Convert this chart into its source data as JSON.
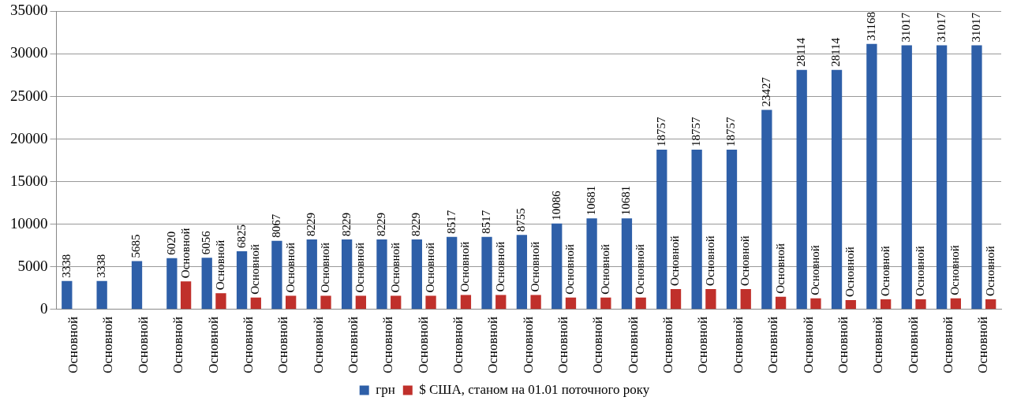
{
  "chart_data": {
    "type": "bar",
    "categories": [
      "Основной",
      "Основной",
      "Основной",
      "Основной",
      "Основной",
      "Основной",
      "Основной",
      "Основной",
      "Основной",
      "Основной",
      "Основной",
      "Основной",
      "Основной",
      "Основной",
      "Основной",
      "Основной",
      "Основной",
      "Основной",
      "Основной",
      "Основной",
      "Основной",
      "Основной",
      "Основной",
      "Основной",
      "Основной",
      "Основной",
      "Основной"
    ],
    "series": [
      {
        "name": "грн",
        "color": "#2e5fa8",
        "values": [
          3338,
          3338,
          5685,
          6020,
          6056,
          6825,
          8067,
          8229,
          8229,
          8229,
          8229,
          8517,
          8517,
          8755,
          10086,
          10681,
          10681,
          18757,
          18757,
          18757,
          23427,
          28114,
          28114,
          31168,
          31017,
          31017,
          31017
        ],
        "value_labels": [
          "3338",
          "3338",
          "5685",
          "6020",
          "6056",
          "6825",
          "8067",
          "8229",
          "8229",
          "8229",
          "8229",
          "8517",
          "8517",
          "8755",
          "10086",
          "10681",
          "10681",
          "18757",
          "18757",
          "18757",
          "23427",
          "28114",
          "28114",
          "31168",
          "31017",
          "31017",
          "31017"
        ]
      },
      {
        "name": "$ США, станом на 01.01 поточного року",
        "color": "#c0302b",
        "values": [
          null,
          null,
          null,
          3300,
          1900,
          1400,
          1600,
          1600,
          1600,
          1600,
          1600,
          1700,
          1700,
          1700,
          1400,
          1400,
          1400,
          2400,
          2400,
          2400,
          1500,
          1300,
          1100,
          1200,
          1200,
          1300,
          1200
        ],
        "value_labels": [
          null,
          null,
          null,
          "Основной",
          "Основной",
          "Основной",
          "Основной",
          "Основной",
          "Основной",
          "Основной",
          "Основной",
          "Основной",
          "Основной",
          "Основной",
          "Основной",
          "Основной",
          "Основной",
          "Основной",
          "Основной",
          "Основной",
          "Основной",
          "Основной",
          "Основной",
          "Основной",
          "Основной",
          "Основной",
          "Основной"
        ]
      }
    ],
    "ylim": [
      0,
      35000
    ],
    "yticks": [
      0,
      5000,
      10000,
      15000,
      20000,
      25000,
      30000,
      35000
    ],
    "grid": "y",
    "legend": "bottom"
  }
}
